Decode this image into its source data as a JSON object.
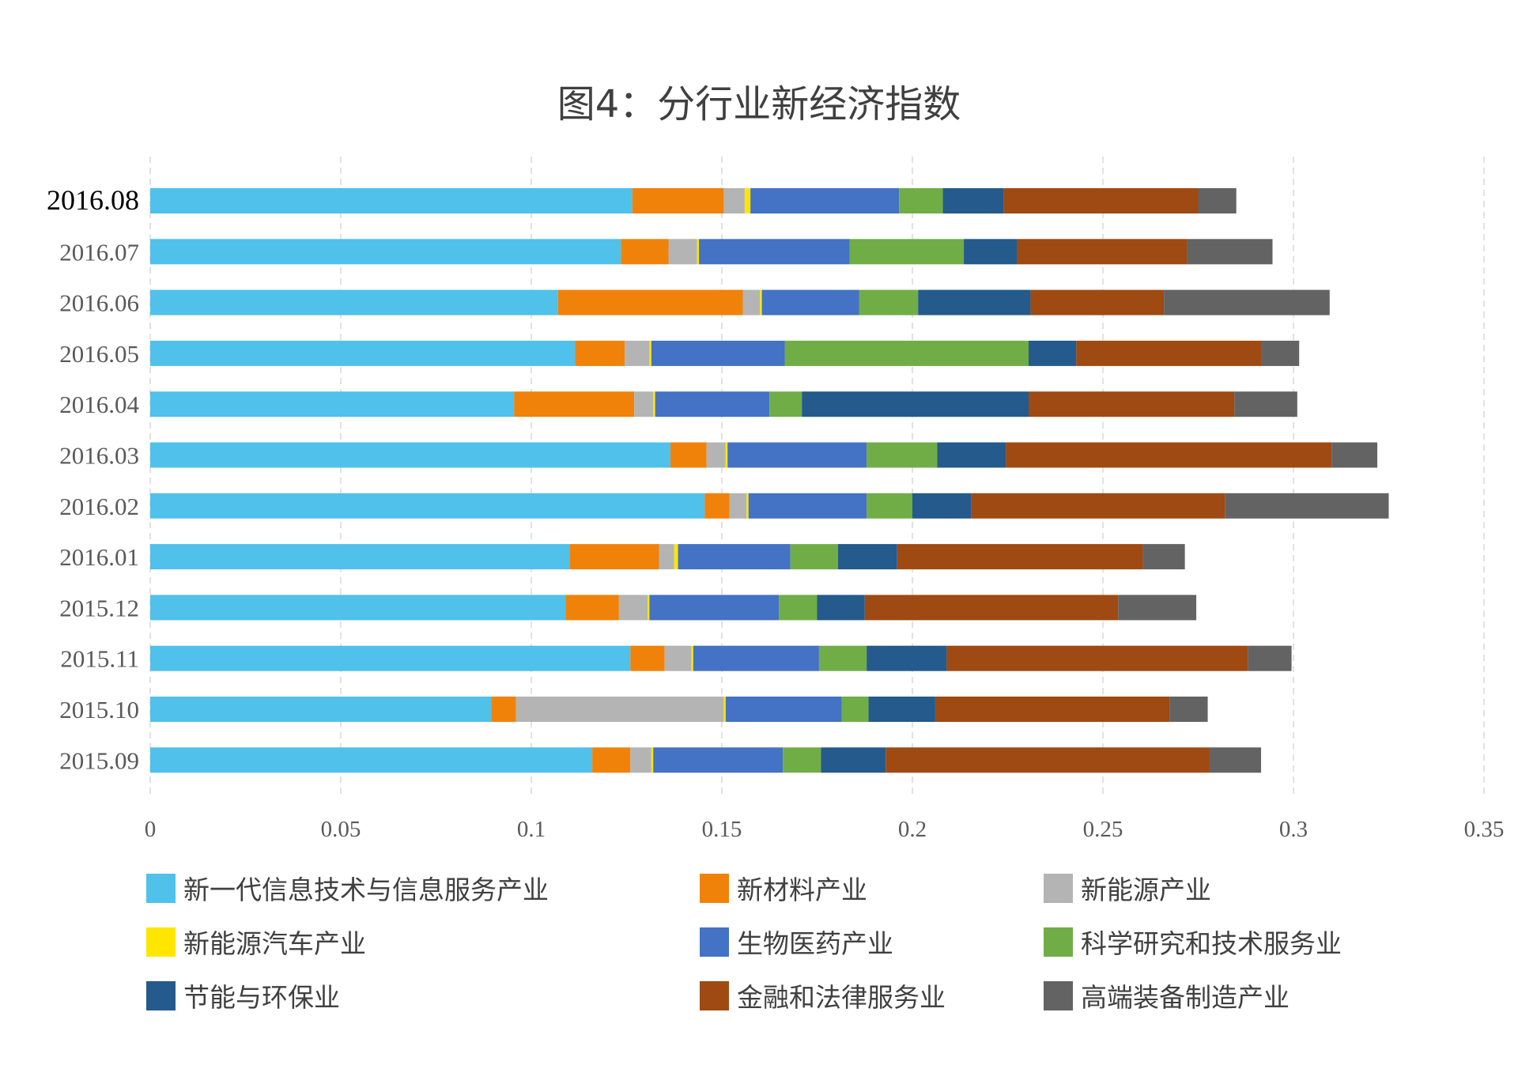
{
  "chart_data": {
    "type": "bar",
    "orientation": "horizontal",
    "stacked": true,
    "title": "图4：分行业新经济指数",
    "categories": [
      "2016.08",
      "2016.07",
      "2016.06",
      "2016.05",
      "2016.04",
      "2016.03",
      "2016.02",
      "2016.01",
      "2015.12",
      "2015.11",
      "2015.10",
      "2015.09"
    ],
    "xlim": [
      0,
      0.35
    ],
    "xticks": [
      "0",
      "0.05",
      "0.1",
      "0.15",
      "0.2",
      "0.25",
      "0.3",
      "0.35"
    ],
    "grid": "vertical dashed",
    "legend_position": "bottom",
    "series": [
      {
        "name": "新一代信息技术与信息服务产业",
        "color": "#4FC1EB",
        "values": [
          0.1265,
          0.1235,
          0.107,
          0.1115,
          0.0955,
          0.1365,
          0.1455,
          0.11,
          0.109,
          0.126,
          0.0895,
          0.116
        ]
      },
      {
        "name": "新材料产业",
        "color": "#F0820A",
        "values": [
          0.024,
          0.0125,
          0.0485,
          0.013,
          0.0315,
          0.0095,
          0.0065,
          0.0235,
          0.014,
          0.009,
          0.0065,
          0.01
        ]
      },
      {
        "name": "新能源产业",
        "color": "#B4B4B4",
        "values": [
          0.0055,
          0.0075,
          0.0045,
          0.0065,
          0.005,
          0.005,
          0.0045,
          0.004,
          0.0075,
          0.007,
          0.0545,
          0.0055
        ]
      },
      {
        "name": "新能源汽车产业",
        "color": "#FFE600",
        "values": [
          0.0015,
          0.0005,
          0.0005,
          0.0005,
          0.0005,
          0.0005,
          0.0005,
          0.001,
          0.0005,
          0.0005,
          0.0005,
          0.0005
        ]
      },
      {
        "name": "生物医药产业",
        "color": "#4472C4",
        "values": [
          0.039,
          0.0395,
          0.0255,
          0.035,
          0.03,
          0.0365,
          0.031,
          0.0295,
          0.034,
          0.033,
          0.0305,
          0.034
        ]
      },
      {
        "name": "科学研究和技术服务业",
        "color": "#70AD47",
        "values": [
          0.0115,
          0.03,
          0.0155,
          0.064,
          0.0085,
          0.0185,
          0.012,
          0.0125,
          0.01,
          0.0125,
          0.007,
          0.01
        ]
      },
      {
        "name": "节能与环保业",
        "color": "#245A8C",
        "values": [
          0.016,
          0.014,
          0.0295,
          0.0125,
          0.0595,
          0.018,
          0.0155,
          0.0155,
          0.0125,
          0.021,
          0.0175,
          0.017
        ]
      },
      {
        "name": "金融和法律服务业",
        "color": "#9E4A12",
        "values": [
          0.051,
          0.0445,
          0.035,
          0.0485,
          0.054,
          0.0855,
          0.0665,
          0.0645,
          0.0665,
          0.079,
          0.0615,
          0.085
        ]
      },
      {
        "name": "高端装备制造产业",
        "color": "#636363",
        "values": [
          0.01,
          0.0225,
          0.0435,
          0.01,
          0.0165,
          0.012,
          0.043,
          0.011,
          0.0205,
          0.0115,
          0.01,
          0.0135
        ]
      }
    ]
  }
}
